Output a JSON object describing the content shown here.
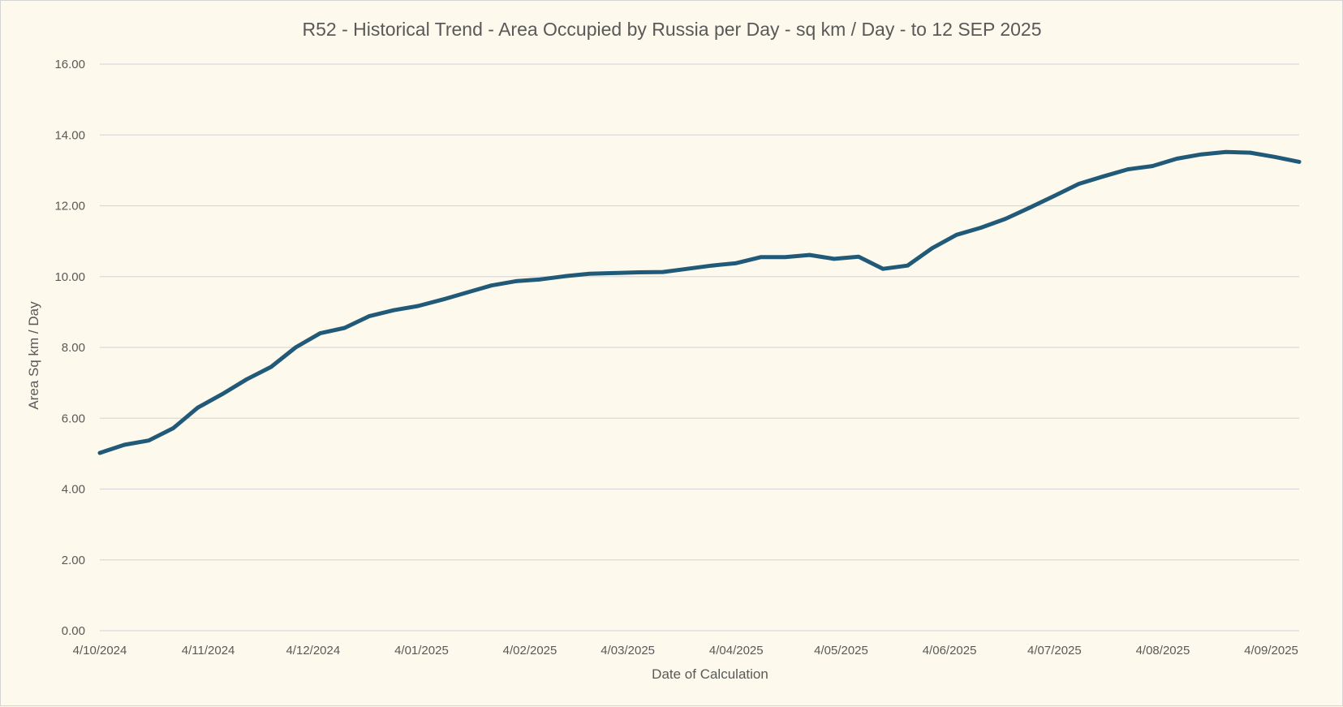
{
  "chart_data": {
    "type": "line",
    "title": "R52 - Historical Trend - Area Occupied by Russia per Day - sq km / Day - to 12 SEP 2025",
    "xlabel": "Date of Calculation",
    "ylabel": "Area Sq km / Day",
    "ylim": [
      0,
      16
    ],
    "y_ticks": [
      "0.00",
      "2.00",
      "4.00",
      "6.00",
      "8.00",
      "10.00",
      "12.00",
      "14.00",
      "16.00"
    ],
    "x_tick_labels": [
      "4/10/2024",
      "4/11/2024",
      "4/12/2024",
      "4/01/2025",
      "4/02/2025",
      "4/03/2025",
      "4/04/2025",
      "4/05/2025",
      "4/06/2025",
      "4/07/2025",
      "4/08/2025",
      "4/09/2025"
    ],
    "x_ticks_dates": [
      "2024-10-04",
      "2024-11-04",
      "2024-12-04",
      "2025-01-04",
      "2025-02-04",
      "2025-03-04",
      "2025-04-04",
      "2025-05-04",
      "2025-06-04",
      "2025-07-04",
      "2025-08-04",
      "2025-09-04"
    ],
    "grid": true,
    "legend": "none",
    "line_color": "#215a78",
    "series": [
      {
        "x": [
          "2024-10-04",
          "2024-10-11",
          "2024-10-18",
          "2024-10-25",
          "2024-11-01",
          "2024-11-08",
          "2024-11-15",
          "2024-11-22",
          "2024-11-29",
          "2024-12-06",
          "2024-12-13",
          "2024-12-20",
          "2024-12-27",
          "2025-01-03",
          "2025-01-10",
          "2025-01-17",
          "2025-01-24",
          "2025-01-31",
          "2025-02-07",
          "2025-02-14",
          "2025-02-21",
          "2025-02-28",
          "2025-03-07",
          "2025-03-14",
          "2025-03-21",
          "2025-03-28",
          "2025-04-04",
          "2025-04-11",
          "2025-04-18",
          "2025-04-25",
          "2025-05-02",
          "2025-05-09",
          "2025-05-16",
          "2025-05-23",
          "2025-05-30",
          "2025-06-06",
          "2025-06-13",
          "2025-06-20",
          "2025-06-27",
          "2025-07-04",
          "2025-07-11",
          "2025-07-18",
          "2025-07-25",
          "2025-08-01",
          "2025-08-08",
          "2025-08-15",
          "2025-08-22",
          "2025-08-29",
          "2025-09-05",
          "2025-09-12"
        ],
        "y": [
          5.02,
          5.25,
          5.37,
          5.72,
          6.3,
          6.68,
          7.1,
          7.45,
          8.0,
          8.4,
          8.55,
          8.88,
          9.05,
          9.17,
          9.35,
          9.55,
          9.75,
          9.87,
          9.92,
          10.01,
          10.08,
          10.1,
          10.12,
          10.13,
          10.22,
          10.31,
          10.38,
          10.55,
          10.55,
          10.61,
          10.5,
          10.56,
          10.22,
          10.31,
          10.8,
          11.18,
          11.38,
          11.63,
          11.95,
          12.28,
          12.62,
          12.83,
          13.03,
          13.12,
          13.33,
          13.45,
          13.52,
          13.5,
          13.38,
          13.24
        ]
      }
    ]
  }
}
